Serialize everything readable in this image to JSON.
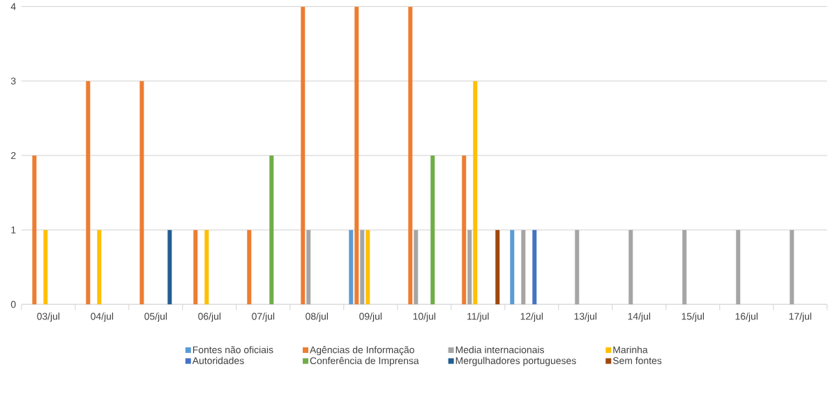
{
  "chart_data": {
    "type": "bar",
    "categories": [
      "03/jul",
      "04/jul",
      "05/jul",
      "06/jul",
      "07/jul",
      "08/jul",
      "09/jul",
      "10/jul",
      "11/jul",
      "12/jul",
      "13/jul",
      "14/jul",
      "15/jul",
      "16/jul",
      "17/jul"
    ],
    "series": [
      {
        "name": "Fontes não oficiais",
        "color": "#5b9bd5",
        "values": [
          0,
          0,
          0,
          0,
          0,
          0,
          1,
          0,
          0,
          1,
          0,
          0,
          0,
          0,
          0
        ]
      },
      {
        "name": "Agências de Informação",
        "color": "#ed7d31",
        "values": [
          2,
          3,
          3,
          1,
          1,
          4,
          4,
          4,
          2,
          0,
          0,
          0,
          0,
          0,
          0
        ]
      },
      {
        "name": "Media internacionais",
        "color": "#a5a5a5",
        "values": [
          0,
          0,
          0,
          0,
          0,
          1,
          1,
          1,
          1,
          1,
          1,
          1,
          1,
          1,
          1
        ]
      },
      {
        "name": "Marinha",
        "color": "#ffc000",
        "values": [
          1,
          1,
          0,
          1,
          0,
          0,
          1,
          0,
          3,
          0,
          0,
          0,
          0,
          0,
          0
        ]
      },
      {
        "name": "Autoridades",
        "color": "#4472c4",
        "values": [
          0,
          0,
          0,
          0,
          0,
          0,
          0,
          0,
          0,
          1,
          0,
          0,
          0,
          0,
          0
        ]
      },
      {
        "name": "Conferência de Imprensa",
        "color": "#70ad47",
        "values": [
          0,
          0,
          0,
          0,
          2,
          0,
          0,
          2,
          0,
          0,
          0,
          0,
          0,
          0,
          0
        ]
      },
      {
        "name": "Mergulhadores portugueses",
        "color": "#255e91",
        "values": [
          0,
          0,
          1,
          0,
          0,
          0,
          0,
          0,
          0,
          0,
          0,
          0,
          0,
          0,
          0
        ]
      },
      {
        "name": "Sem fontes",
        "color": "#9e480e",
        "values": [
          0,
          0,
          0,
          0,
          0,
          0,
          0,
          0,
          1,
          0,
          0,
          0,
          0,
          0,
          0
        ]
      }
    ],
    "ylim": [
      0,
      4
    ],
    "yticks": [
      0,
      1,
      2,
      3,
      4
    ],
    "grid": "y",
    "legend": "bottom"
  }
}
